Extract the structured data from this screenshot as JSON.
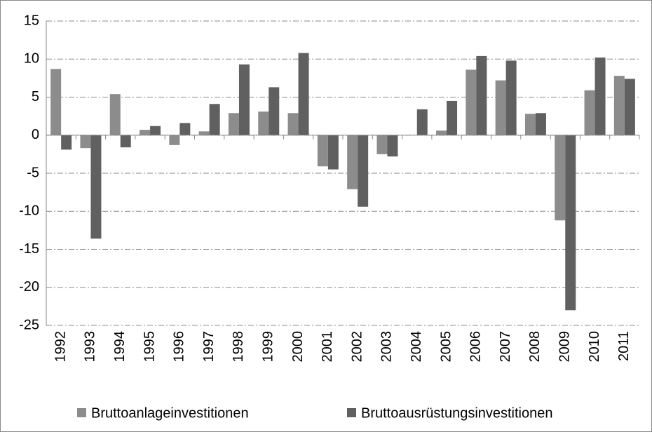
{
  "chart_data": {
    "type": "bar",
    "categories": [
      "1992",
      "1993",
      "1994",
      "1995",
      "1996",
      "1997",
      "1998",
      "1999",
      "2000",
      "2001",
      "2002",
      "2003",
      "2004",
      "2005",
      "2006",
      "2007",
      "2008",
      "2009",
      "2010",
      "2011"
    ],
    "series": [
      {
        "name": "Bruttoanlageinvestitionen",
        "color": "#8c8c8c",
        "values": [
          8.7,
          -1.7,
          5.4,
          0.7,
          -1.3,
          0.5,
          2.9,
          3.1,
          2.9,
          -4.1,
          -7.1,
          -2.5,
          0.0,
          0.6,
          8.6,
          7.2,
          2.8,
          -11.2,
          5.9,
          7.8
        ]
      },
      {
        "name": "Bruttoausrüstungsinvestitionen",
        "color": "#606060",
        "values": [
          -1.9,
          -13.6,
          -1.6,
          1.2,
          1.6,
          4.1,
          9.3,
          6.3,
          10.8,
          -4.5,
          -9.4,
          -2.8,
          3.4,
          4.5,
          10.4,
          9.8,
          2.9,
          -23.0,
          10.2,
          7.4
        ]
      }
    ],
    "ylim": [
      -25,
      15
    ],
    "yticks": [
      -25,
      -20,
      -15,
      -10,
      -5,
      0,
      5,
      10,
      15
    ],
    "grid": true,
    "legend": "bottom"
  }
}
